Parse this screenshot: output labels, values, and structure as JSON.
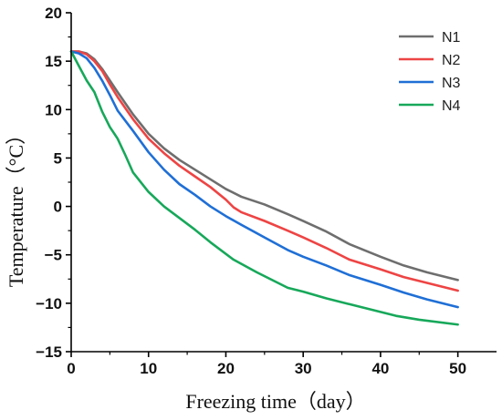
{
  "chart_data": {
    "type": "line",
    "title": "",
    "xlabel": "Freezing time（day）",
    "ylabel": "Temperature（°C）",
    "xlim": [
      0,
      55
    ],
    "ylim": [
      -15,
      20
    ],
    "xticks": [
      0,
      10,
      20,
      30,
      40,
      50
    ],
    "yticks": [
      -15,
      -10,
      -5,
      0,
      5,
      10,
      15,
      20
    ],
    "grid": false,
    "legend": "top-right",
    "series": [
      {
        "name": "N1",
        "color": "#6e6e6e",
        "x": [
          0,
          1,
          2,
          3,
          4,
          5,
          6,
          8,
          10,
          12,
          14,
          16,
          18,
          20,
          22,
          25,
          28,
          30,
          33,
          36,
          40,
          43,
          46,
          50
        ],
        "y": [
          16,
          16,
          15.8,
          15.2,
          14.2,
          13,
          11.8,
          9.5,
          7.5,
          6,
          4.8,
          3.8,
          2.8,
          1.8,
          1,
          0.2,
          -0.8,
          -1.5,
          -2.6,
          -3.9,
          -5.2,
          -6.1,
          -6.8,
          -7.6
        ]
      },
      {
        "name": "N2",
        "color": "#ee4444",
        "x": [
          0,
          1,
          2,
          3,
          4,
          5,
          6,
          8,
          10,
          12,
          14,
          16,
          18,
          20,
          21,
          22,
          25,
          28,
          30,
          33,
          36,
          40,
          43,
          46,
          50
        ],
        "y": [
          16,
          16,
          15.7,
          15,
          14,
          12.6,
          11.3,
          9,
          7,
          5.5,
          4.2,
          3.1,
          2,
          0.7,
          -0.1,
          -0.6,
          -1.5,
          -2.5,
          -3.2,
          -4.3,
          -5.5,
          -6.5,
          -7.3,
          -7.9,
          -8.7
        ]
      },
      {
        "name": "N3",
        "color": "#1f6fd6",
        "x": [
          0,
          1,
          2,
          3,
          4,
          5,
          6,
          8,
          10,
          12,
          14,
          16,
          18,
          20,
          22,
          25,
          28,
          30,
          33,
          36,
          40,
          43,
          46,
          50
        ],
        "y": [
          16,
          15.8,
          15.3,
          14.3,
          13,
          11.5,
          9.9,
          7.8,
          5.6,
          3.8,
          2.3,
          1.2,
          0,
          -1,
          -1.9,
          -3.2,
          -4.5,
          -5.2,
          -6.1,
          -7.1,
          -8.1,
          -8.9,
          -9.6,
          -10.4
        ]
      },
      {
        "name": "N4",
        "color": "#17a85a",
        "x": [
          0,
          1,
          2,
          3,
          4,
          5,
          6,
          7,
          8,
          10,
          12,
          14,
          16,
          18,
          21,
          24,
          28,
          30,
          33,
          36,
          40,
          42,
          45,
          50
        ],
        "y": [
          16,
          14.5,
          13,
          11.8,
          9.8,
          8.2,
          7,
          5.3,
          3.5,
          1.5,
          0,
          -1.2,
          -2.4,
          -3.7,
          -5.5,
          -6.8,
          -8.4,
          -8.8,
          -9.5,
          -10.1,
          -10.9,
          -11.3,
          -11.7,
          -12.2
        ]
      }
    ]
  }
}
